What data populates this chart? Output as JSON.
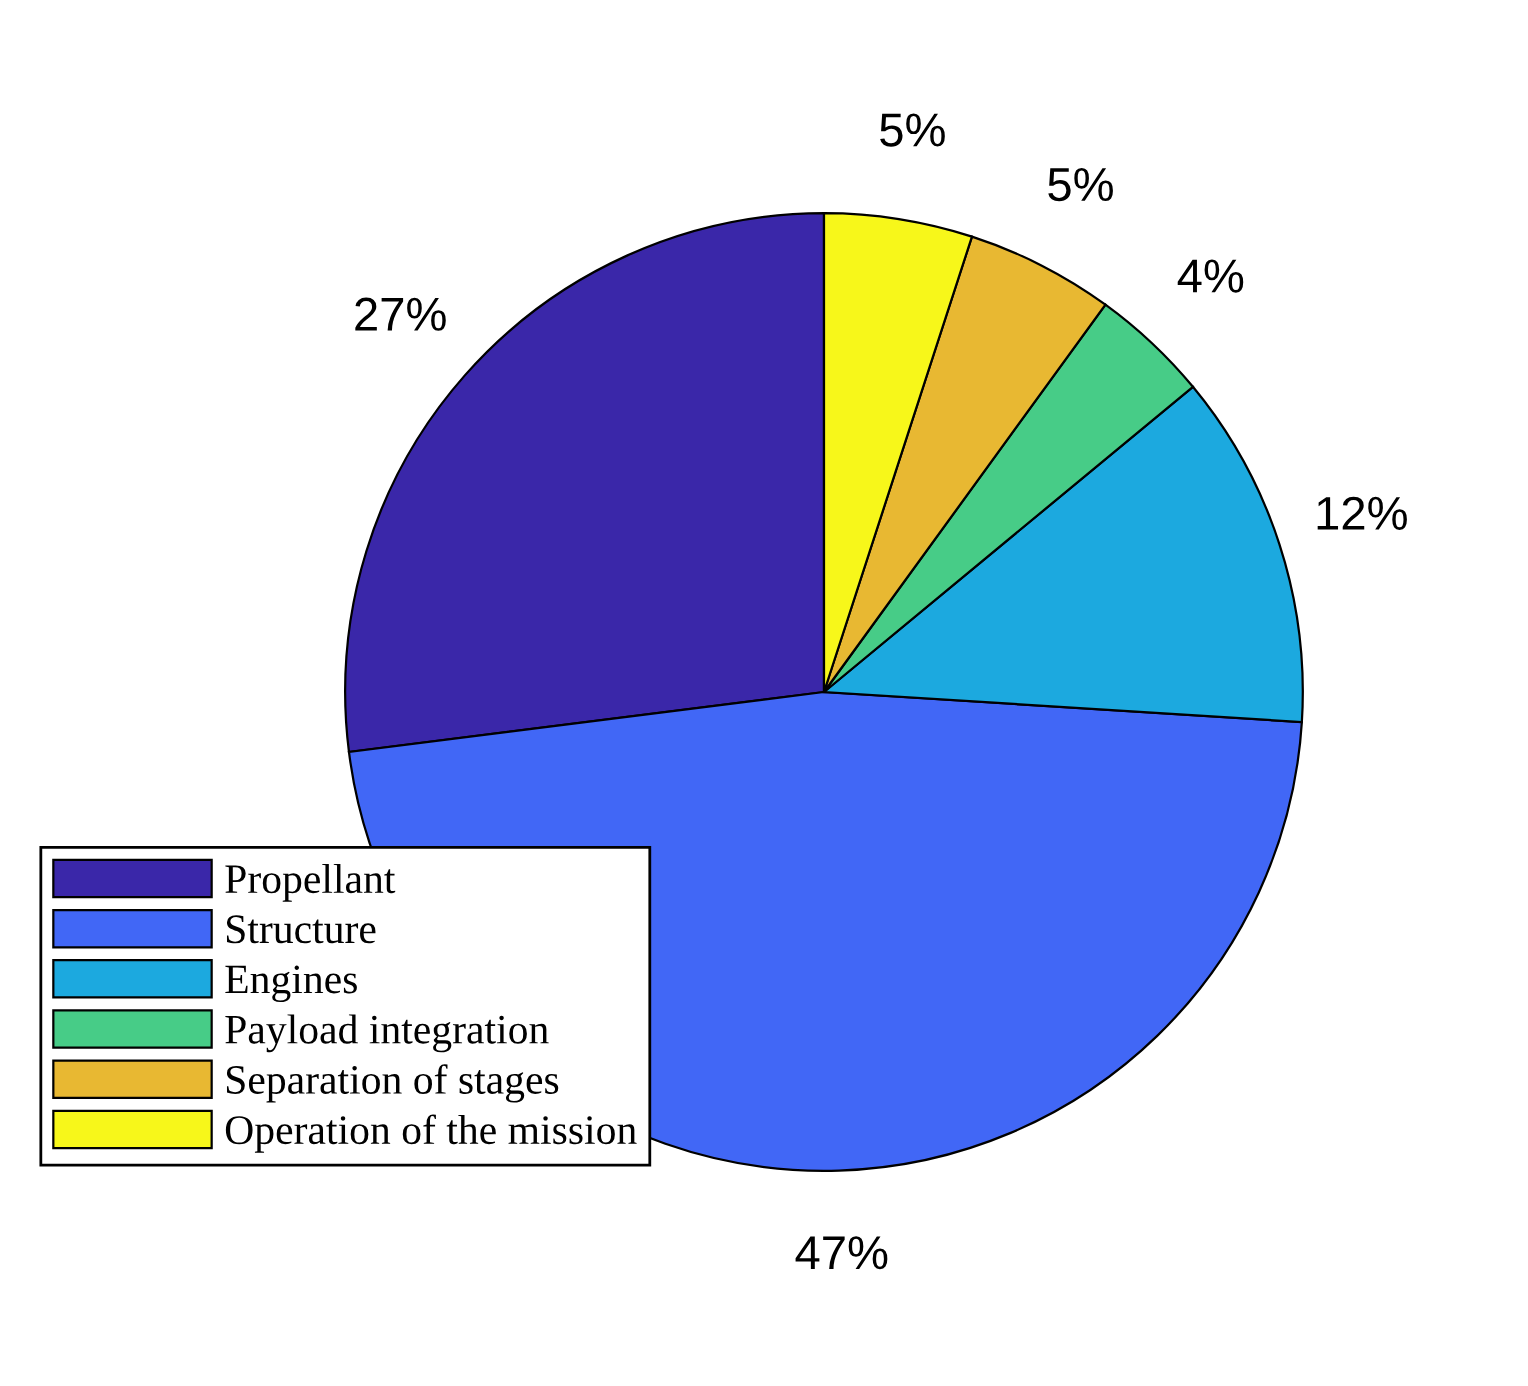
{
  "chart_data": {
    "type": "pie",
    "categories": [
      "Propellant",
      "Structure",
      "Engines",
      "Payload integration",
      "Separation of stages",
      "Operation of the mission"
    ],
    "values": [
      27,
      47,
      12,
      4,
      5,
      5
    ],
    "value_labels": [
      "27%",
      "47%",
      "12%",
      "4%",
      "5%",
      "5%"
    ],
    "colors": [
      "#3a27a9",
      "#4167f6",
      "#1ca9df",
      "#47cc87",
      "#e8b832",
      "#f7f71a"
    ],
    "legend": "bottom left"
  }
}
